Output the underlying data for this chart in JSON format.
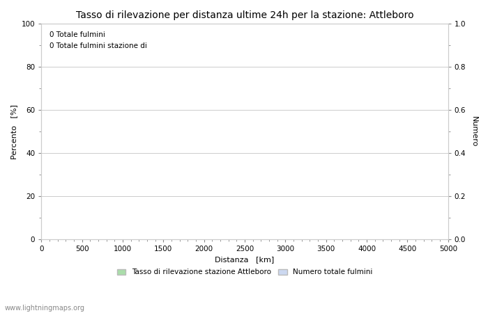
{
  "title": "Tasso di rilevazione per distanza ultime 24h per la stazione: Attleboro",
  "xlabel": "Distanza   [km]",
  "ylabel_left": "Percento   [%]",
  "ylabel_right": "Numero",
  "annotation_line1": "0 Totale fulmini",
  "annotation_line2": "0 Totale fulmini stazione di",
  "xlim": [
    0,
    5000
  ],
  "ylim_left": [
    0,
    100
  ],
  "ylim_right": [
    0,
    1.0
  ],
  "xticks": [
    0,
    500,
    1000,
    1500,
    2000,
    2500,
    3000,
    3500,
    4000,
    4500,
    5000
  ],
  "yticks_left": [
    0,
    20,
    40,
    60,
    80,
    100
  ],
  "yticks_right": [
    0.0,
    0.2,
    0.4,
    0.6,
    0.8,
    1.0
  ],
  "grid_color": "#cccccc",
  "background_color": "#ffffff",
  "legend_label_left": "Tasso di rilevazione stazione Attleboro",
  "legend_label_right": "Numero totale fulmini",
  "legend_color_left": "#aaddaa",
  "legend_color_right": "#ccd8f0",
  "watermark": "www.lightningmaps.org",
  "title_fontsize": 10,
  "axis_label_fontsize": 8,
  "tick_fontsize": 7.5,
  "annotation_fontsize": 7.5,
  "legend_fontsize": 7.5,
  "watermark_fontsize": 7
}
